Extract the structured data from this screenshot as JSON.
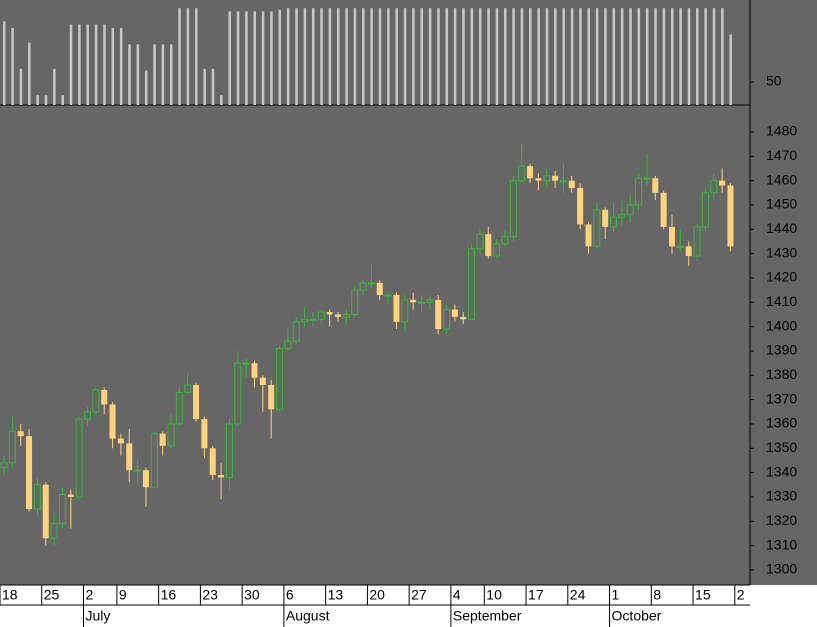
{
  "chart_data": {
    "type": "candlestick",
    "categories": [
      "18",
      null,
      null,
      null,
      null,
      "25",
      null,
      null,
      null,
      null,
      "2",
      null,
      null,
      null,
      "9",
      null,
      null,
      null,
      null,
      "16",
      null,
      null,
      null,
      null,
      "23",
      null,
      null,
      null,
      null,
      "30",
      null,
      null,
      null,
      null,
      "6",
      null,
      null,
      null,
      null,
      "13",
      null,
      null,
      null,
      null,
      "20",
      null,
      null,
      null,
      null,
      "27",
      null,
      null,
      null,
      null,
      "4",
      null,
      null,
      null,
      "10",
      null,
      null,
      null,
      null,
      "17",
      null,
      null,
      null,
      null,
      "24",
      null,
      null,
      null,
      null,
      "1",
      null,
      null,
      null,
      null,
      "8",
      null,
      null,
      null,
      null,
      "15",
      null,
      null,
      null,
      null
    ],
    "trailing_label": "2",
    "months": [
      "July",
      "August",
      "September",
      "October"
    ],
    "open": [
      1342,
      1344,
      1357,
      1355,
      1325,
      1335,
      1313,
      1319,
      1331,
      1330,
      1362,
      1365,
      1374,
      1368,
      1354,
      1352,
      1341,
      1341,
      1334,
      1356,
      1351,
      1360,
      1373,
      1376,
      1362,
      1350,
      1339,
      1338,
      1360,
      1385,
      1385,
      1379,
      1376,
      1366,
      1391,
      1394,
      1402,
      1403,
      1403,
      1406,
      1405,
      1404,
      1405,
      1415,
      1418,
      1418,
      1413,
      1413,
      1402,
      1411,
      1410,
      1410,
      1411,
      1399,
      1407,
      1404,
      1403,
      1432,
      1438,
      1429,
      1434,
      1437,
      1460,
      1466,
      1461,
      1460,
      1462,
      1460,
      1460,
      1457,
      1442,
      1433,
      1448,
      1441,
      1445,
      1446,
      1450,
      1461,
      1461,
      1455,
      1441,
      1433,
      1433,
      1429,
      1441,
      1455,
      1460,
      1458
    ],
    "high": [
      1347,
      1363,
      1360,
      1358,
      1338,
      1336,
      1324,
      1334,
      1333,
      1363,
      1367,
      1375,
      1375,
      1369,
      1356,
      1358,
      1345,
      1342,
      1357,
      1357,
      1364,
      1375,
      1381,
      1377,
      1363,
      1351,
      1344,
      1362,
      1390,
      1387,
      1386,
      1380,
      1378,
      1392,
      1399,
      1404,
      1408,
      1406,
      1407,
      1407,
      1406,
      1407,
      1417,
      1419,
      1426,
      1419,
      1414,
      1414,
      1413,
      1414,
      1413,
      1413,
      1413,
      1409,
      1409,
      1406,
      1434,
      1440,
      1441,
      1436,
      1440,
      1462,
      1475,
      1467,
      1463,
      1465,
      1464,
      1467,
      1462,
      1459,
      1443,
      1451,
      1449,
      1451,
      1452,
      1454,
      1463,
      1471,
      1462,
      1456,
      1446,
      1440,
      1435,
      1442,
      1457,
      1463,
      1465,
      1459
    ],
    "low": [
      1339,
      1342,
      1351,
      1324,
      1322,
      1310,
      1310,
      1317,
      1317,
      1329,
      1359,
      1364,
      1364,
      1350,
      1347,
      1336,
      1335,
      1326,
      1334,
      1347,
      1350,
      1359,
      1372,
      1361,
      1346,
      1337,
      1329,
      1333,
      1359,
      1379,
      1375,
      1365,
      1354,
      1365,
      1390,
      1393,
      1400,
      1400,
      1401,
      1400,
      1402,
      1401,
      1404,
      1413,
      1416,
      1411,
      1409,
      1399,
      1398,
      1407,
      1406,
      1407,
      1397,
      1397,
      1402,
      1401,
      1403,
      1430,
      1428,
      1428,
      1433,
      1435,
      1459,
      1459,
      1456,
      1457,
      1457,
      1455,
      1455,
      1440,
      1430,
      1432,
      1436,
      1439,
      1441,
      1443,
      1448,
      1458,
      1452,
      1440,
      1430,
      1431,
      1425,
      1427,
      1439,
      1453,
      1455,
      1431
    ],
    "close": [
      1344,
      1357,
      1355,
      1325,
      1335,
      1313,
      1319,
      1331,
      1330,
      1362,
      1365,
      1374,
      1368,
      1354,
      1352,
      1341,
      1341,
      1334,
      1356,
      1351,
      1360,
      1373,
      1376,
      1362,
      1350,
      1339,
      1338,
      1360,
      1385,
      1385,
      1379,
      1376,
      1366,
      1391,
      1394,
      1402,
      1403,
      1403,
      1406,
      1405,
      1404,
      1405,
      1415,
      1418,
      1418,
      1413,
      1413,
      1402,
      1411,
      1410,
      1410,
      1411,
      1399,
      1407,
      1404,
      1403,
      1432,
      1438,
      1429,
      1434,
      1437,
      1460,
      1466,
      1461,
      1460,
      1462,
      1460,
      1460,
      1457,
      1442,
      1433,
      1448,
      1441,
      1445,
      1446,
      1450,
      1461,
      1461,
      1455,
      1441,
      1433,
      1433,
      1429,
      1441,
      1455,
      1460,
      1458,
      1433
    ],
    "up_color": "#3cb83c",
    "down_color": "#ffd27f",
    "ylim": [
      1293.8,
      1491.1
    ],
    "yticks": [
      1300,
      1310,
      1320,
      1330,
      1340,
      1350,
      1360,
      1370,
      1380,
      1390,
      1400,
      1410,
      1420,
      1430,
      1440,
      1450,
      1460,
      1470,
      1480
    ],
    "indicator": {
      "type": "bar",
      "color": "#c8c8c8",
      "ylim": [
        36,
        100
      ],
      "yticks": [
        50
      ],
      "values": [
        87,
        83,
        58,
        74,
        42,
        42,
        58,
        42,
        85,
        85,
        85,
        85,
        85,
        83,
        83,
        73,
        73,
        57,
        73,
        73,
        73,
        95,
        95,
        95,
        58,
        58,
        42,
        93,
        93,
        93,
        93,
        93,
        93,
        94,
        95,
        95,
        95,
        95,
        95,
        95,
        95,
        95,
        95,
        95,
        95,
        95,
        95,
        95,
        95,
        95,
        95,
        95,
        95,
        95,
        95,
        95,
        95,
        95,
        95,
        95,
        95,
        95,
        95,
        95,
        95,
        95,
        95,
        95,
        95,
        95,
        95,
        95,
        95,
        95,
        95,
        95,
        95,
        95,
        95,
        95,
        95,
        95,
        95,
        95,
        95,
        95,
        95,
        79
      ]
    }
  }
}
